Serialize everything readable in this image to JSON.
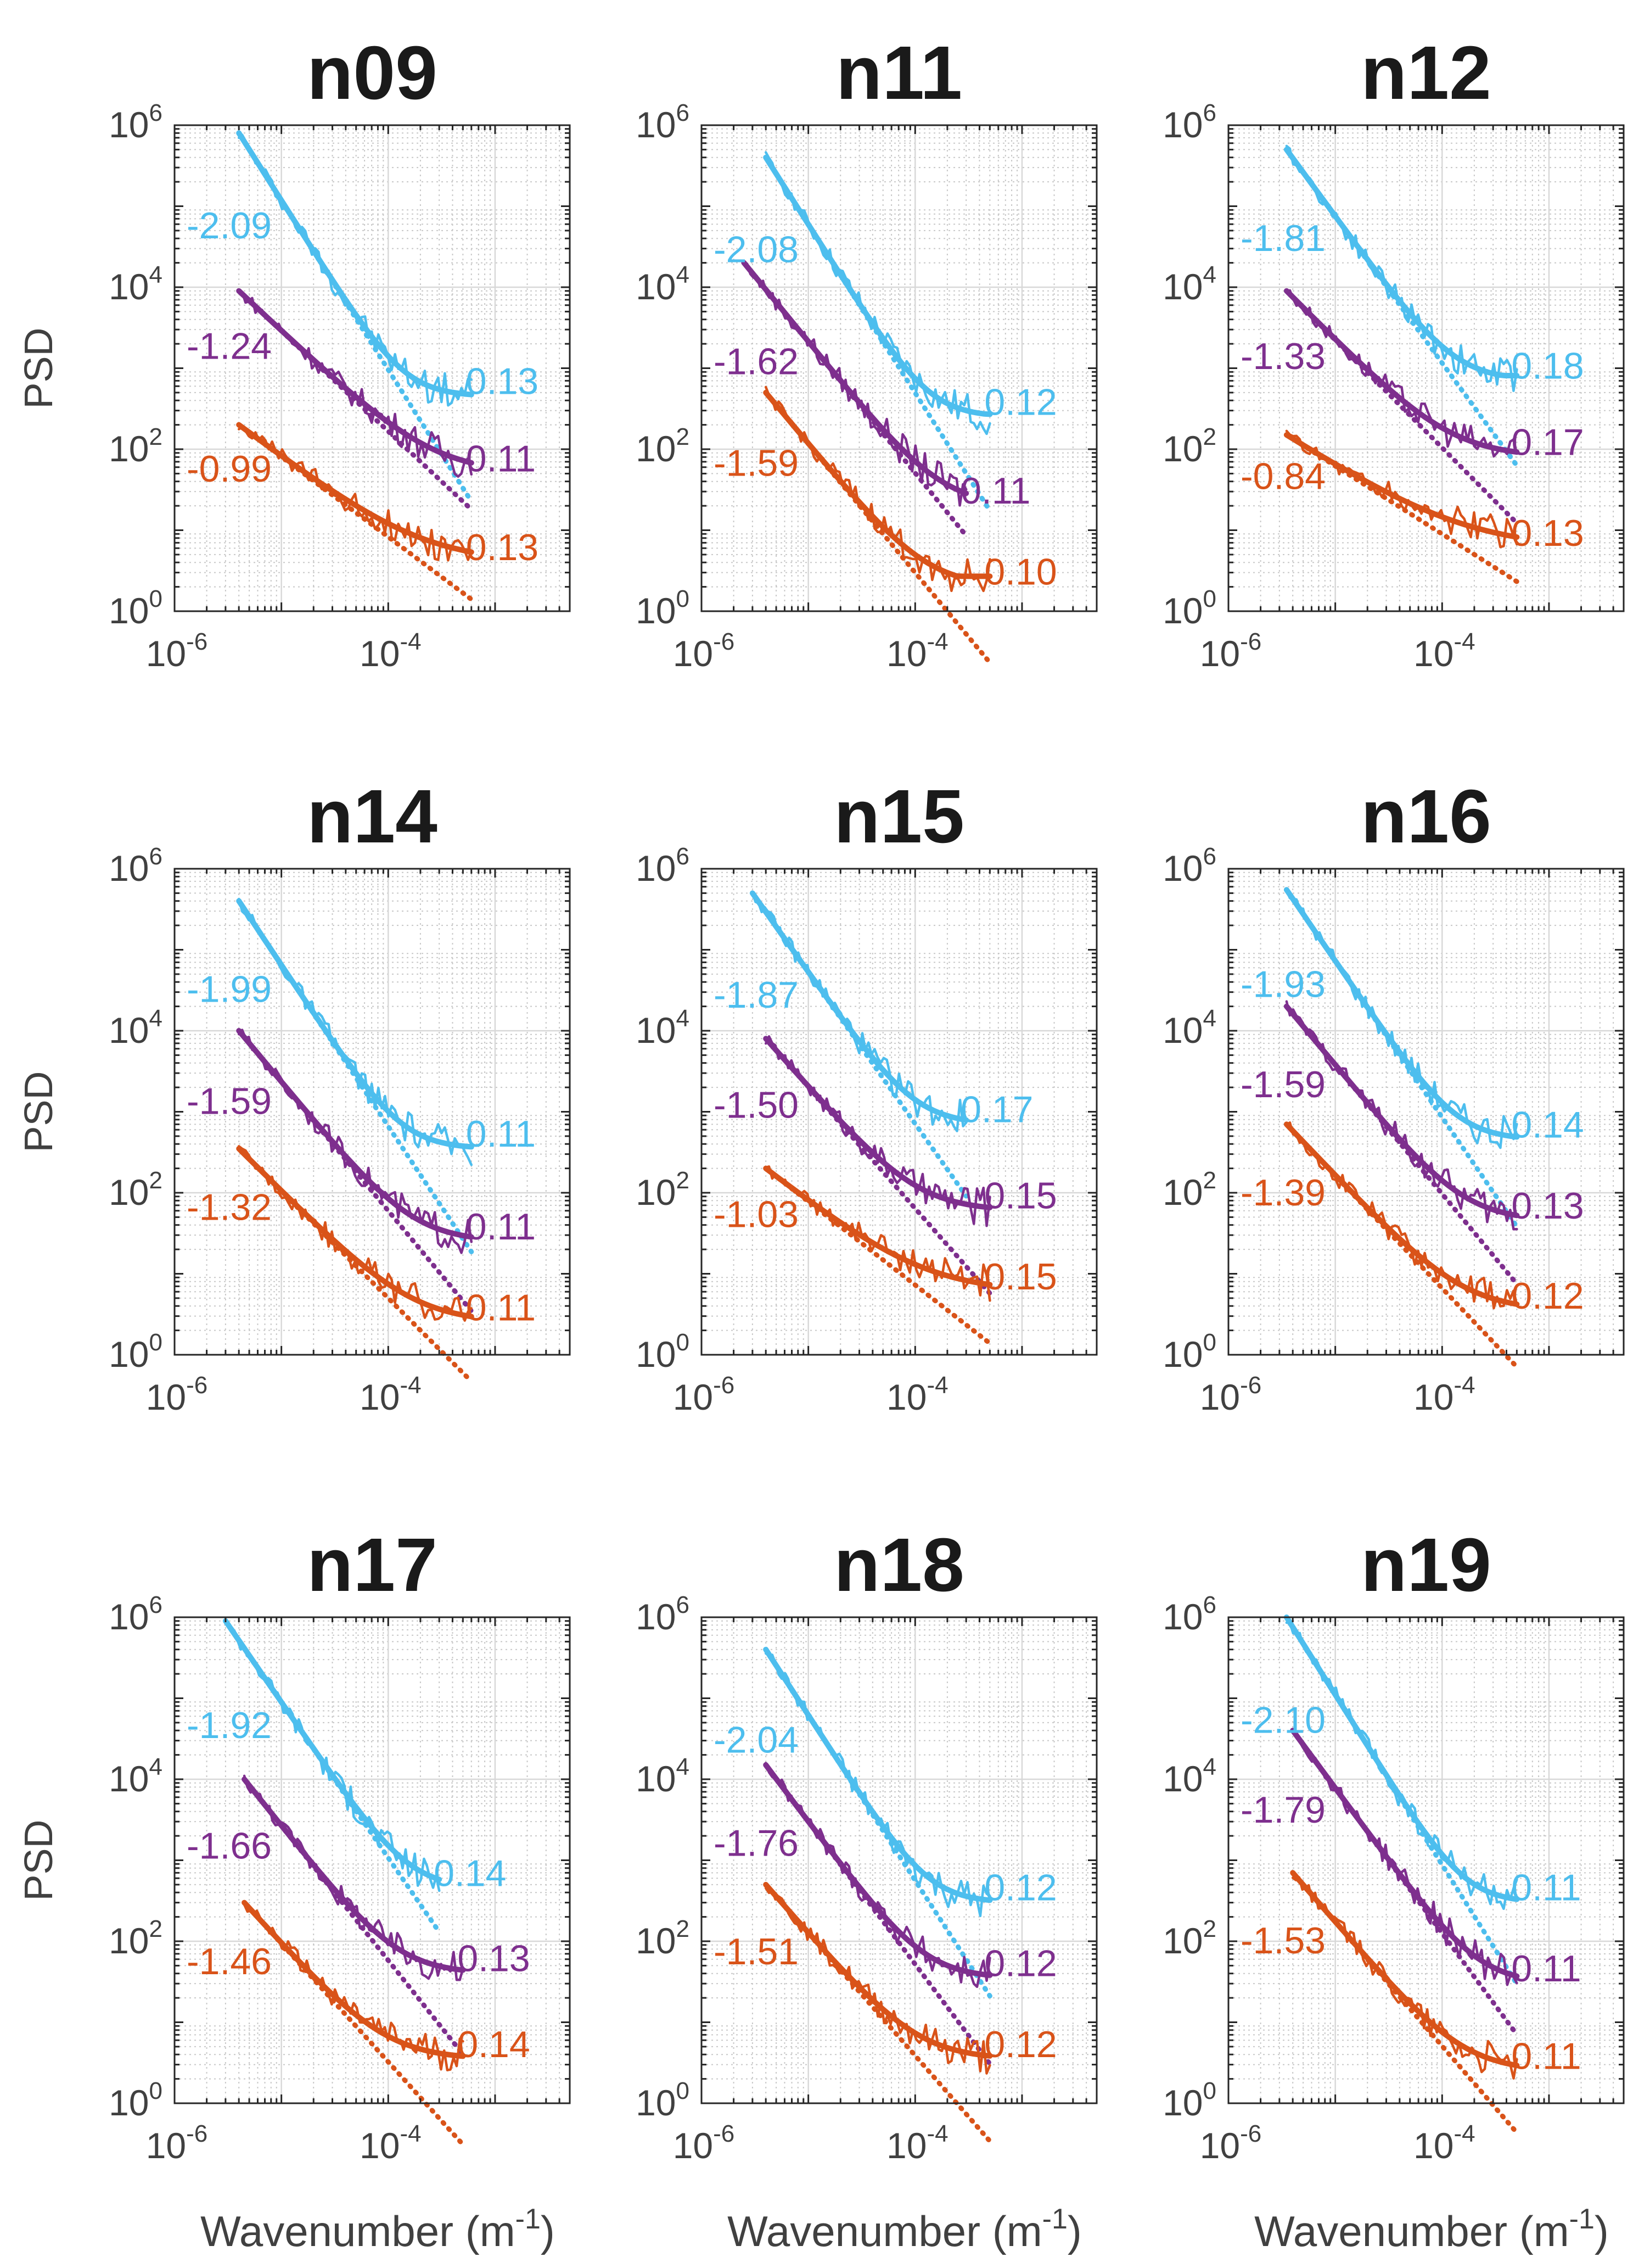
{
  "colors": {
    "blue": "#4DBEEE",
    "purple": "#7E2F8E",
    "orange": "#D95319",
    "axis": "#262626",
    "grid": "#c8c8c8"
  },
  "axes": {
    "ylabel": "PSD",
    "xlabel_main": "Wavenumber (m",
    "xlabel_sup": "-1",
    "xlabel_close": ")",
    "x_ticks": [
      {
        "base": "10",
        "exp": "-6"
      },
      {
        "base": "10",
        "exp": "-4"
      }
    ],
    "y_ticks": [
      {
        "base": "10",
        "exp": "0"
      },
      {
        "base": "10",
        "exp": "2"
      },
      {
        "base": "10",
        "exp": "4"
      },
      {
        "base": "10",
        "exp": "6"
      }
    ],
    "xlim": [
      1e-06,
      0.005
    ],
    "ylim": [
      1,
      1000000
    ]
  },
  "chart_data": [
    {
      "type": "line",
      "scale": "log-log",
      "title": "n09",
      "xlabel": "Wavenumber (m-1)",
      "ylabel": "PSD",
      "xlim": [
        1e-06,
        0.005
      ],
      "ylim": [
        1,
        1000000
      ],
      "series": [
        {
          "name": "blue",
          "slope_label": "-2.09",
          "end_label": "0.13",
          "x_start": 4e-06,
          "x_end": 0.0006,
          "y_start": 800000,
          "y_end": 500,
          "plateau": 450
        },
        {
          "name": "purple",
          "slope_label": "-1.24",
          "end_label": "0.11",
          "x_start": 4e-06,
          "x_end": 0.0006,
          "y_start": 9000,
          "y_end": 60,
          "plateau": 50
        },
        {
          "name": "orange",
          "slope_label": "-0.99",
          "end_label": "0.13",
          "x_start": 4e-06,
          "x_end": 0.0006,
          "y_start": 200,
          "y_end": 5,
          "plateau": 4
        }
      ]
    },
    {
      "type": "line",
      "scale": "log-log",
      "title": "n11",
      "xlabel": "Wavenumber (m-1)",
      "ylabel": "PSD",
      "xlim": [
        1e-06,
        0.005
      ],
      "ylim": [
        1,
        1000000
      ],
      "series": [
        {
          "name": "blue",
          "slope_label": "-2.08",
          "end_label": "0.12",
          "x_start": 4e-06,
          "x_end": 0.0005,
          "y_start": 400000,
          "y_end": 300,
          "plateau": 250
        },
        {
          "name": "purple",
          "slope_label": "-1.62",
          "end_label": "0.11",
          "x_start": 2.5e-06,
          "x_end": 0.0003,
          "y_start": 20000,
          "y_end": 30,
          "plateau": 20
        },
        {
          "name": "orange",
          "slope_label": "-1.59",
          "end_label": "0.10",
          "x_start": 4e-06,
          "x_end": 0.0005,
          "y_start": 500,
          "y_end": 3,
          "plateau": 2
        }
      ]
    },
    {
      "type": "line",
      "scale": "log-log",
      "title": "n12",
      "xlabel": "Wavenumber (m-1)",
      "ylabel": "PSD",
      "xlim": [
        1e-06,
        0.005
      ],
      "ylim": [
        1,
        1000000
      ],
      "series": [
        {
          "name": "blue",
          "slope_label": "-1.81",
          "end_label": "0.18",
          "x_start": 3.5e-06,
          "x_end": 0.0005,
          "y_start": 500000,
          "y_end": 900,
          "plateau": 700
        },
        {
          "name": "purple",
          "slope_label": "-1.33",
          "end_label": "0.17",
          "x_start": 3.5e-06,
          "x_end": 0.0005,
          "y_start": 9000,
          "y_end": 90,
          "plateau": 80
        },
        {
          "name": "orange",
          "slope_label": "-0.84",
          "end_label": "0.13",
          "x_start": 3.5e-06,
          "x_end": 0.0005,
          "y_start": 150,
          "y_end": 7,
          "plateau": 6
        }
      ]
    },
    {
      "type": "line",
      "scale": "log-log",
      "title": "n14",
      "xlabel": "Wavenumber (m-1)",
      "ylabel": "PSD",
      "xlim": [
        1e-06,
        0.005
      ],
      "ylim": [
        1,
        1000000
      ],
      "series": [
        {
          "name": "blue",
          "slope_label": "-1.99",
          "end_label": "0.11",
          "x_start": 4e-06,
          "x_end": 0.0006,
          "y_start": 400000,
          "y_end": 400,
          "plateau": 350
        },
        {
          "name": "purple",
          "slope_label": "-1.59",
          "end_label": "0.11",
          "x_start": 4e-06,
          "x_end": 0.0006,
          "y_start": 10000,
          "y_end": 30,
          "plateau": 25
        },
        {
          "name": "orange",
          "slope_label": "-1.32",
          "end_label": "0.11",
          "x_start": 4e-06,
          "x_end": 0.0006,
          "y_start": 350,
          "y_end": 3,
          "plateau": 2.5
        }
      ]
    },
    {
      "type": "line",
      "scale": "log-log",
      "title": "n15",
      "xlabel": "Wavenumber (m-1)",
      "ylabel": "PSD",
      "xlim": [
        1e-06,
        0.005
      ],
      "ylim": [
        1,
        1000000
      ],
      "series": [
        {
          "name": "blue",
          "slope_label": "-1.87",
          "end_label": "0.17",
          "x_start": 3e-06,
          "x_end": 0.0003,
          "y_start": 500000,
          "y_end": 800,
          "plateau": 700
        },
        {
          "name": "purple",
          "slope_label": "-1.50",
          "end_label": "0.15",
          "x_start": 4e-06,
          "x_end": 0.0005,
          "y_start": 8000,
          "y_end": 70,
          "plateau": 60
        },
        {
          "name": "orange",
          "slope_label": "-1.03",
          "end_label": "0.15",
          "x_start": 4e-06,
          "x_end": 0.0005,
          "y_start": 200,
          "y_end": 7,
          "plateau": 6
        }
      ]
    },
    {
      "type": "line",
      "scale": "log-log",
      "title": "n16",
      "xlabel": "Wavenumber (m-1)",
      "ylabel": "PSD",
      "xlim": [
        1e-06,
        0.005
      ],
      "ylim": [
        1,
        1000000
      ],
      "series": [
        {
          "name": "blue",
          "slope_label": "-1.93",
          "end_label": "0.14",
          "x_start": 3.5e-06,
          "x_end": 0.0005,
          "y_start": 550000,
          "y_end": 500,
          "plateau": 450
        },
        {
          "name": "purple",
          "slope_label": "-1.59",
          "end_label": "0.13",
          "x_start": 3.5e-06,
          "x_end": 0.0005,
          "y_start": 20000,
          "y_end": 50,
          "plateau": 45
        },
        {
          "name": "orange",
          "slope_label": "-1.39",
          "end_label": "0.12",
          "x_start": 3.5e-06,
          "x_end": 0.0005,
          "y_start": 700,
          "y_end": 4,
          "plateau": 3.5
        }
      ]
    },
    {
      "type": "line",
      "scale": "log-log",
      "title": "n17",
      "xlabel": "Wavenumber (m-1)",
      "ylabel": "PSD",
      "xlim": [
        1e-06,
        0.005
      ],
      "ylim": [
        1,
        1000000
      ],
      "series": [
        {
          "name": "blue",
          "slope_label": "-1.92",
          "end_label": "0.14",
          "x_start": 3e-06,
          "x_end": 0.0003,
          "y_start": 900000,
          "y_end": 500,
          "plateau": 450
        },
        {
          "name": "purple",
          "slope_label": "-1.66",
          "end_label": "0.13",
          "x_start": 4.5e-06,
          "x_end": 0.0005,
          "y_start": 10000,
          "y_end": 45,
          "plateau": 40
        },
        {
          "name": "orange",
          "slope_label": "-1.46",
          "end_label": "0.14",
          "x_start": 4.5e-06,
          "x_end": 0.0005,
          "y_start": 300,
          "y_end": 4,
          "plateau": 3.5
        }
      ]
    },
    {
      "type": "line",
      "scale": "log-log",
      "title": "n18",
      "xlabel": "Wavenumber (m-1)",
      "ylabel": "PSD",
      "xlim": [
        1e-06,
        0.005
      ],
      "ylim": [
        1,
        1000000
      ],
      "series": [
        {
          "name": "blue",
          "slope_label": "-2.04",
          "end_label": "0.12",
          "x_start": 4e-06,
          "x_end": 0.0005,
          "y_start": 400000,
          "y_end": 350,
          "plateau": 300
        },
        {
          "name": "purple",
          "slope_label": "-1.76",
          "end_label": "0.12",
          "x_start": 4e-06,
          "x_end": 0.0005,
          "y_start": 15000,
          "y_end": 40,
          "plateau": 35
        },
        {
          "name": "orange",
          "slope_label": "-1.51",
          "end_label": "0.12",
          "x_start": 4e-06,
          "x_end": 0.0005,
          "y_start": 500,
          "y_end": 4,
          "plateau": 3.5
        }
      ]
    },
    {
      "type": "line",
      "scale": "log-log",
      "title": "n19",
      "xlabel": "Wavenumber (m-1)",
      "ylabel": "PSD",
      "xlim": [
        1e-06,
        0.005
      ],
      "ylim": [
        1,
        1000000
      ],
      "series": [
        {
          "name": "blue",
          "slope_label": "-2.10",
          "end_label": "0.11",
          "x_start": 3.5e-06,
          "x_end": 0.0005,
          "y_start": 1000000,
          "y_end": 350,
          "plateau": 300
        },
        {
          "name": "purple",
          "slope_label": "-1.79",
          "end_label": "0.11",
          "x_start": 4e-06,
          "x_end": 0.0005,
          "y_start": 40000,
          "y_end": 35,
          "plateau": 30
        },
        {
          "name": "orange",
          "slope_label": "-1.53",
          "end_label": "0.11",
          "x_start": 4e-06,
          "x_end": 0.0005,
          "y_start": 700,
          "y_end": 3,
          "plateau": 2.5
        }
      ]
    }
  ]
}
